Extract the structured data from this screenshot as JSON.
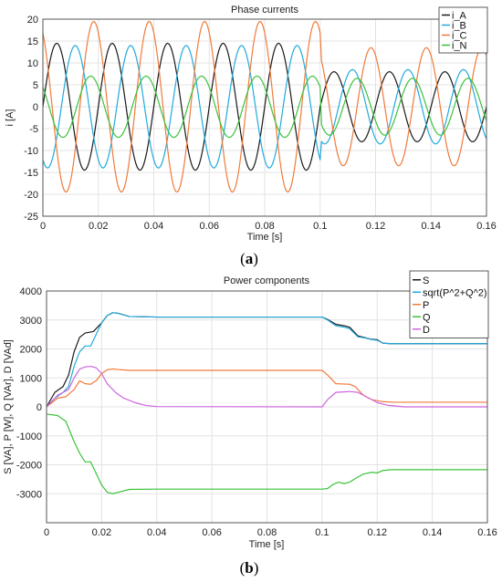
{
  "chart_data": [
    {
      "type": "line",
      "title": "Phase currents",
      "xlabel": "Time [s]",
      "ylabel": "i [A]",
      "xlim": [
        0,
        0.16
      ],
      "ylim": [
        -25,
        20
      ],
      "xticks": [
        0,
        0.02,
        0.04,
        0.06,
        0.08,
        0.1,
        0.12,
        0.14,
        0.16
      ],
      "yticks": [
        -25,
        -20,
        -15,
        -10,
        -5,
        0,
        5,
        10,
        15,
        20
      ],
      "xtick_labels": [
        "0",
        "0.02",
        "0.04",
        "0.06",
        "0.08",
        "0.1",
        "0.12",
        "0.14",
        "0.16"
      ],
      "ytick_labels": [
        "-25",
        "-20",
        "-15",
        "-10",
        "-5",
        "0",
        "5",
        "10",
        "15",
        "20"
      ],
      "grid": true,
      "legend_position": "top-right",
      "series": [
        {
          "name": "i_A",
          "color": "#1a1a1a",
          "waveform": "sine",
          "frequency_hz": 50,
          "segments": [
            {
              "t0": 0,
              "t1": 0.1,
              "amplitude": 14.5,
              "phase_deg": 0
            },
            {
              "t0": 0.1,
              "t1": 0.16,
              "amplitude": 8,
              "phase_deg": 0
            }
          ]
        },
        {
          "name": "i_B",
          "color": "#22aadd",
          "waveform": "sine",
          "frequency_hz": 50,
          "segments": [
            {
              "t0": 0,
              "t1": 0.1,
              "amplitude": 14,
              "phase_deg": -120
            },
            {
              "t0": 0.1,
              "t1": 0.16,
              "amplitude": 8.5,
              "phase_deg": -120
            }
          ]
        },
        {
          "name": "i_C",
          "color": "#f07a3a",
          "waveform": "sine",
          "frequency_hz": 50,
          "segments": [
            {
              "t0": 0,
              "t1": 0.1,
              "amplitude": 19.5,
              "phase_deg": 120
            },
            {
              "t0": 0.1,
              "t1": 0.16,
              "amplitude": 13.5,
              "phase_deg": 120
            }
          ]
        },
        {
          "name": "i_N",
          "color": "#3cc23c",
          "waveform": "sine",
          "frequency_hz": 50,
          "segments": [
            {
              "t0": 0,
              "t1": 0.1,
              "amplitude": 7,
              "phase_deg": 140
            },
            {
              "t0": 0.1,
              "t1": 0.16,
              "amplitude": 6.5,
              "phase_deg": -150
            }
          ]
        }
      ]
    },
    {
      "type": "line",
      "title": "Power components",
      "xlabel": "Time [s]",
      "ylabel": "S [VA], P [W], Q [VAr], D [VAd]",
      "xlim": [
        0,
        0.16
      ],
      "ylim": [
        -4000,
        4000
      ],
      "xticks": [
        0,
        0.02,
        0.04,
        0.06,
        0.08,
        0.1,
        0.12,
        0.14,
        0.16
      ],
      "yticks": [
        -4000,
        -3000,
        -2000,
        -1000,
        0,
        1000,
        2000,
        3000,
        4000
      ],
      "xtick_labels": [
        "0",
        "0.02",
        "0.04",
        "0.06",
        "0.08",
        "0.1",
        "0.12",
        "0.14",
        "0.16"
      ],
      "ytick_labels": [
        "",
        "-3000",
        "-2000",
        "-1000",
        "0",
        "1000",
        "2000",
        "3000",
        "4000"
      ],
      "grid": true,
      "legend_position": "top-right",
      "series": [
        {
          "name": "S",
          "color": "#1a1a1a",
          "points": [
            [
              0,
              0
            ],
            [
              0.003,
              500
            ],
            [
              0.006,
              700
            ],
            [
              0.008,
              1100
            ],
            [
              0.01,
              1900
            ],
            [
              0.012,
              2400
            ],
            [
              0.014,
              2550
            ],
            [
              0.017,
              2600
            ],
            [
              0.02,
              2900
            ],
            [
              0.022,
              3150
            ],
            [
              0.024,
              3250
            ],
            [
              0.026,
              3230
            ],
            [
              0.03,
              3120
            ],
            [
              0.04,
              3100
            ],
            [
              0.1,
              3100
            ],
            [
              0.102,
              3020
            ],
            [
              0.105,
              2850
            ],
            [
              0.108,
              2800
            ],
            [
              0.11,
              2750
            ],
            [
              0.113,
              2450
            ],
            [
              0.116,
              2380
            ],
            [
              0.118,
              2330
            ],
            [
              0.12,
              2320
            ],
            [
              0.122,
              2200
            ],
            [
              0.125,
              2180
            ],
            [
              0.16,
              2180
            ]
          ]
        },
        {
          "name": "sqrt(P^2+Q^2)",
          "color": "#22aadd",
          "points": [
            [
              0,
              0
            ],
            [
              0.003,
              300
            ],
            [
              0.006,
              500
            ],
            [
              0.008,
              700
            ],
            [
              0.01,
              1400
            ],
            [
              0.012,
              1900
            ],
            [
              0.014,
              2100
            ],
            [
              0.016,
              2100
            ],
            [
              0.018,
              2500
            ],
            [
              0.02,
              2900
            ],
            [
              0.022,
              3150
            ],
            [
              0.024,
              3250
            ],
            [
              0.026,
              3230
            ],
            [
              0.03,
              3120
            ],
            [
              0.04,
              3100
            ],
            [
              0.1,
              3100
            ],
            [
              0.102,
              3000
            ],
            [
              0.105,
              2800
            ],
            [
              0.108,
              2750
            ],
            [
              0.11,
              2700
            ],
            [
              0.113,
              2420
            ],
            [
              0.116,
              2370
            ],
            [
              0.118,
              2320
            ],
            [
              0.12,
              2300
            ],
            [
              0.122,
              2200
            ],
            [
              0.125,
              2180
            ],
            [
              0.16,
              2180
            ]
          ]
        },
        {
          "name": "P",
          "color": "#f07a3a",
          "points": [
            [
              0,
              0
            ],
            [
              0.004,
              300
            ],
            [
              0.007,
              350
            ],
            [
              0.01,
              600
            ],
            [
              0.012,
              900
            ],
            [
              0.014,
              800
            ],
            [
              0.016,
              780
            ],
            [
              0.018,
              900
            ],
            [
              0.02,
              1150
            ],
            [
              0.022,
              1280
            ],
            [
              0.024,
              1310
            ],
            [
              0.026,
              1290
            ],
            [
              0.03,
              1260
            ],
            [
              0.04,
              1260
            ],
            [
              0.1,
              1260
            ],
            [
              0.102,
              1100
            ],
            [
              0.105,
              800
            ],
            [
              0.11,
              780
            ],
            [
              0.112,
              700
            ],
            [
              0.115,
              400
            ],
            [
              0.118,
              250
            ],
            [
              0.122,
              180
            ],
            [
              0.126,
              160
            ],
            [
              0.16,
              160
            ]
          ]
        },
        {
          "name": "Q",
          "color": "#3cc23c",
          "points": [
            [
              0,
              -250
            ],
            [
              0.004,
              -300
            ],
            [
              0.007,
              -500
            ],
            [
              0.01,
              -1200
            ],
            [
              0.012,
              -1600
            ],
            [
              0.014,
              -1900
            ],
            [
              0.016,
              -1900
            ],
            [
              0.018,
              -2300
            ],
            [
              0.02,
              -2700
            ],
            [
              0.022,
              -2950
            ],
            [
              0.024,
              -3000
            ],
            [
              0.026,
              -2950
            ],
            [
              0.03,
              -2850
            ],
            [
              0.04,
              -2840
            ],
            [
              0.1,
              -2840
            ],
            [
              0.102,
              -2820
            ],
            [
              0.104,
              -2680
            ],
            [
              0.106,
              -2600
            ],
            [
              0.108,
              -2650
            ],
            [
              0.11,
              -2600
            ],
            [
              0.112,
              -2480
            ],
            [
              0.115,
              -2320
            ],
            [
              0.118,
              -2260
            ],
            [
              0.12,
              -2280
            ],
            [
              0.122,
              -2200
            ],
            [
              0.125,
              -2170
            ],
            [
              0.16,
              -2170
            ]
          ]
        },
        {
          "name": "D",
          "color": "#cc66dd",
          "points": [
            [
              0,
              0
            ],
            [
              0.004,
              400
            ],
            [
              0.008,
              600
            ],
            [
              0.01,
              1000
            ],
            [
              0.012,
              1300
            ],
            [
              0.014,
              1380
            ],
            [
              0.016,
              1400
            ],
            [
              0.018,
              1350
            ],
            [
              0.02,
              1150
            ],
            [
              0.022,
              800
            ],
            [
              0.025,
              500
            ],
            [
              0.028,
              300
            ],
            [
              0.032,
              150
            ],
            [
              0.036,
              50
            ],
            [
              0.04,
              10
            ],
            [
              0.1,
              0
            ],
            [
              0.102,
              250
            ],
            [
              0.105,
              500
            ],
            [
              0.11,
              530
            ],
            [
              0.113,
              500
            ],
            [
              0.116,
              350
            ],
            [
              0.12,
              150
            ],
            [
              0.124,
              50
            ],
            [
              0.13,
              0
            ],
            [
              0.16,
              0
            ]
          ]
        }
      ]
    }
  ],
  "captions": {
    "a": {
      "open": "(",
      "letter": "a",
      "close": ")"
    },
    "b": {
      "open": "(",
      "letter": "b",
      "close": ")"
    }
  }
}
